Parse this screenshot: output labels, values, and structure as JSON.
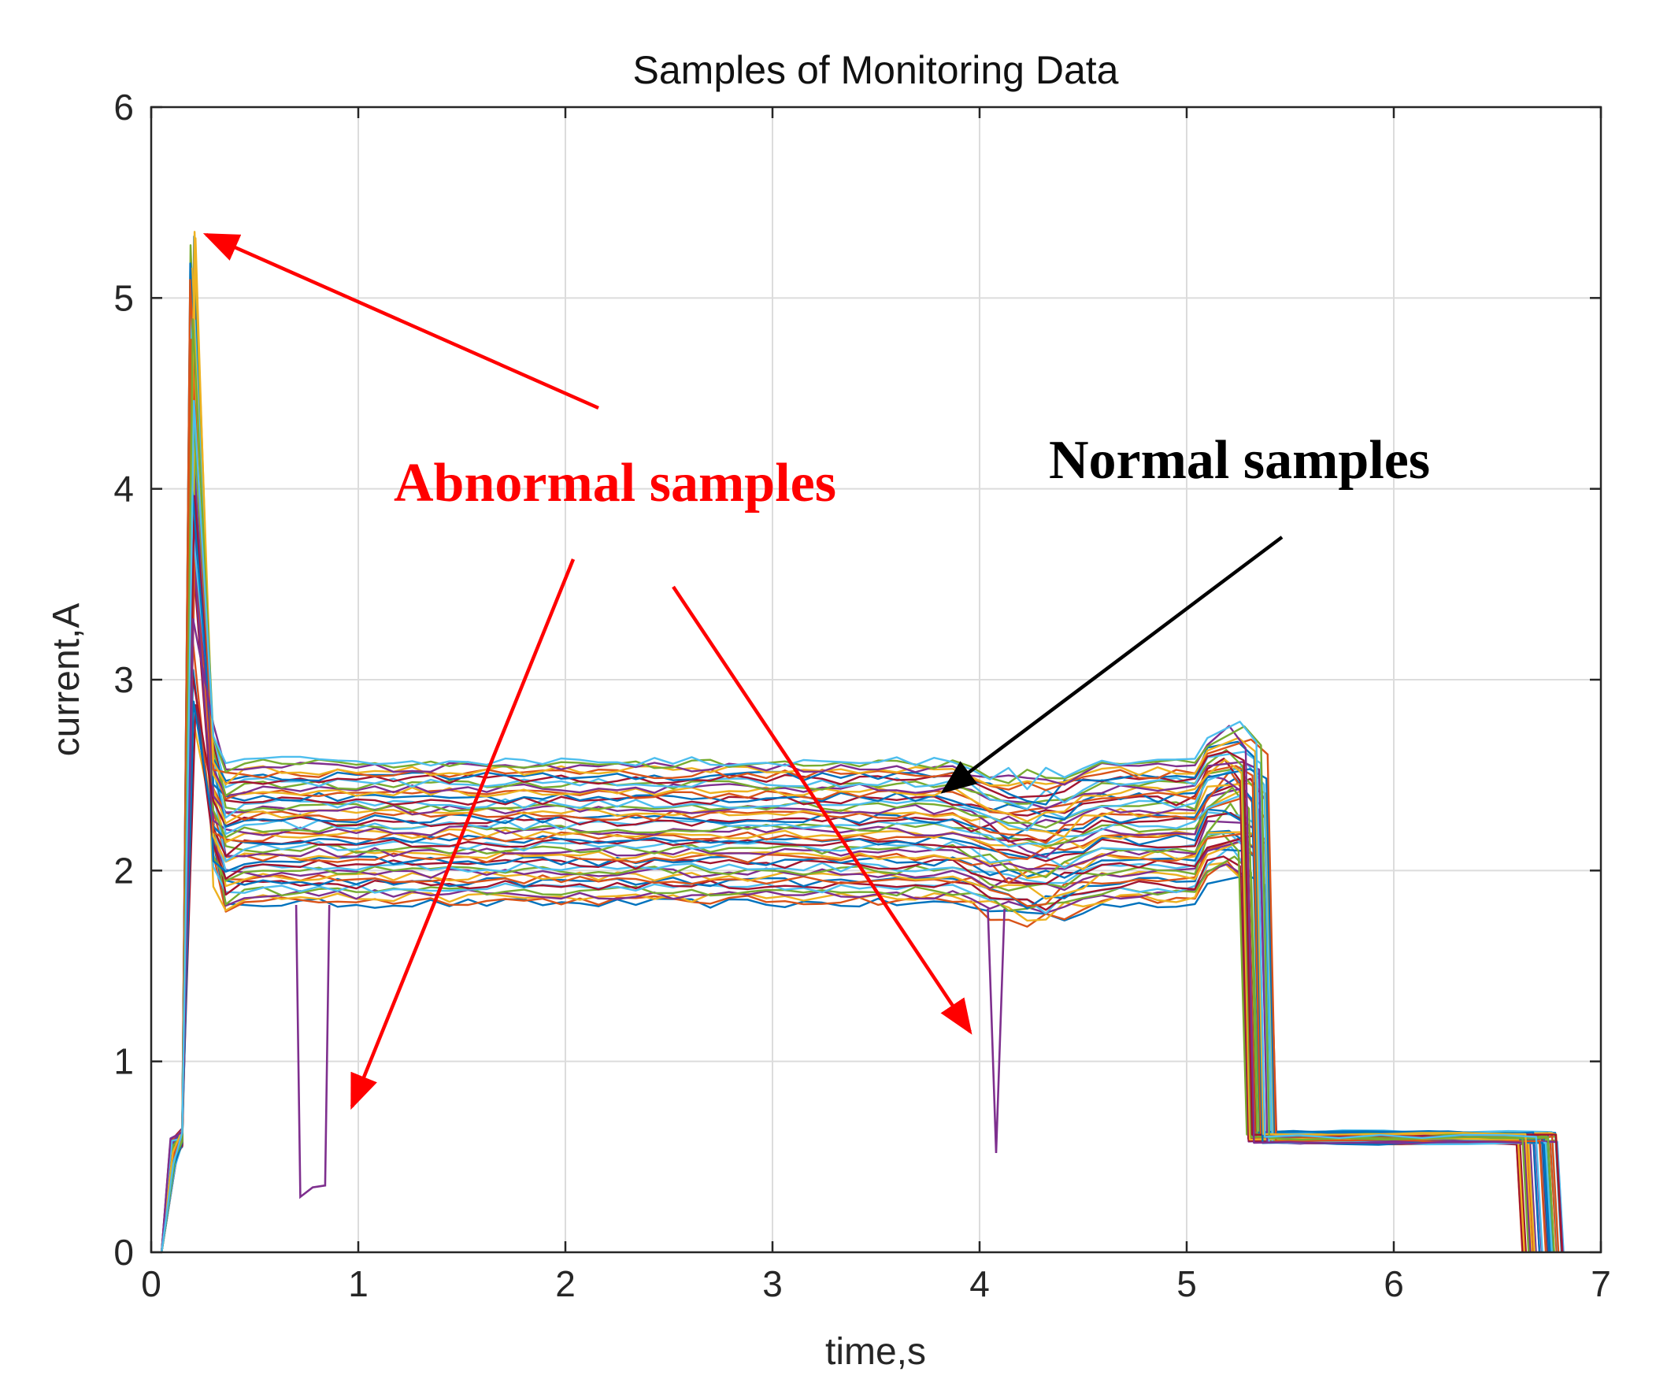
{
  "chart_data": {
    "type": "line",
    "title": "Samples of Monitoring Data",
    "xlabel": "time,s",
    "ylabel": "current,A",
    "xlim": [
      0,
      7
    ],
    "ylim": [
      0,
      6
    ],
    "xticks": [
      "0",
      "1",
      "2",
      "3",
      "4",
      "5",
      "6",
      "7"
    ],
    "yticks": [
      "0",
      "1",
      "2",
      "3",
      "4",
      "5",
      "6"
    ],
    "grid": true,
    "band": {
      "description": "many overlapping normal sample curves",
      "num_series": 48,
      "start_x": 0.05,
      "spike_x": 0.2,
      "spike_peak_range": [
        2.8,
        5.4
      ],
      "plateau_start_x": 0.3,
      "plateau_range": [
        1.82,
        2.58
      ],
      "step_up_x": 5.05,
      "drop_x_range": [
        5.25,
        5.4
      ],
      "low_level_range": [
        0.57,
        0.63
      ],
      "end_x_range": [
        6.62,
        6.82
      ]
    },
    "abnormal_dips": [
      {
        "x_start": 0.72,
        "x_end": 0.86,
        "min_value": 0.29
      },
      {
        "x_start": 4.04,
        "x_end": 4.12,
        "min_value": 0.52
      }
    ],
    "colors": [
      "#0072BD",
      "#D95319",
      "#EDB120",
      "#7E2F8E",
      "#77AC30",
      "#4DBEEE",
      "#A2142F"
    ],
    "annotations": [
      {
        "text": "Abnormal samples",
        "color": "#ff0000"
      },
      {
        "text": "Normal samples",
        "color": "#000000"
      }
    ]
  }
}
